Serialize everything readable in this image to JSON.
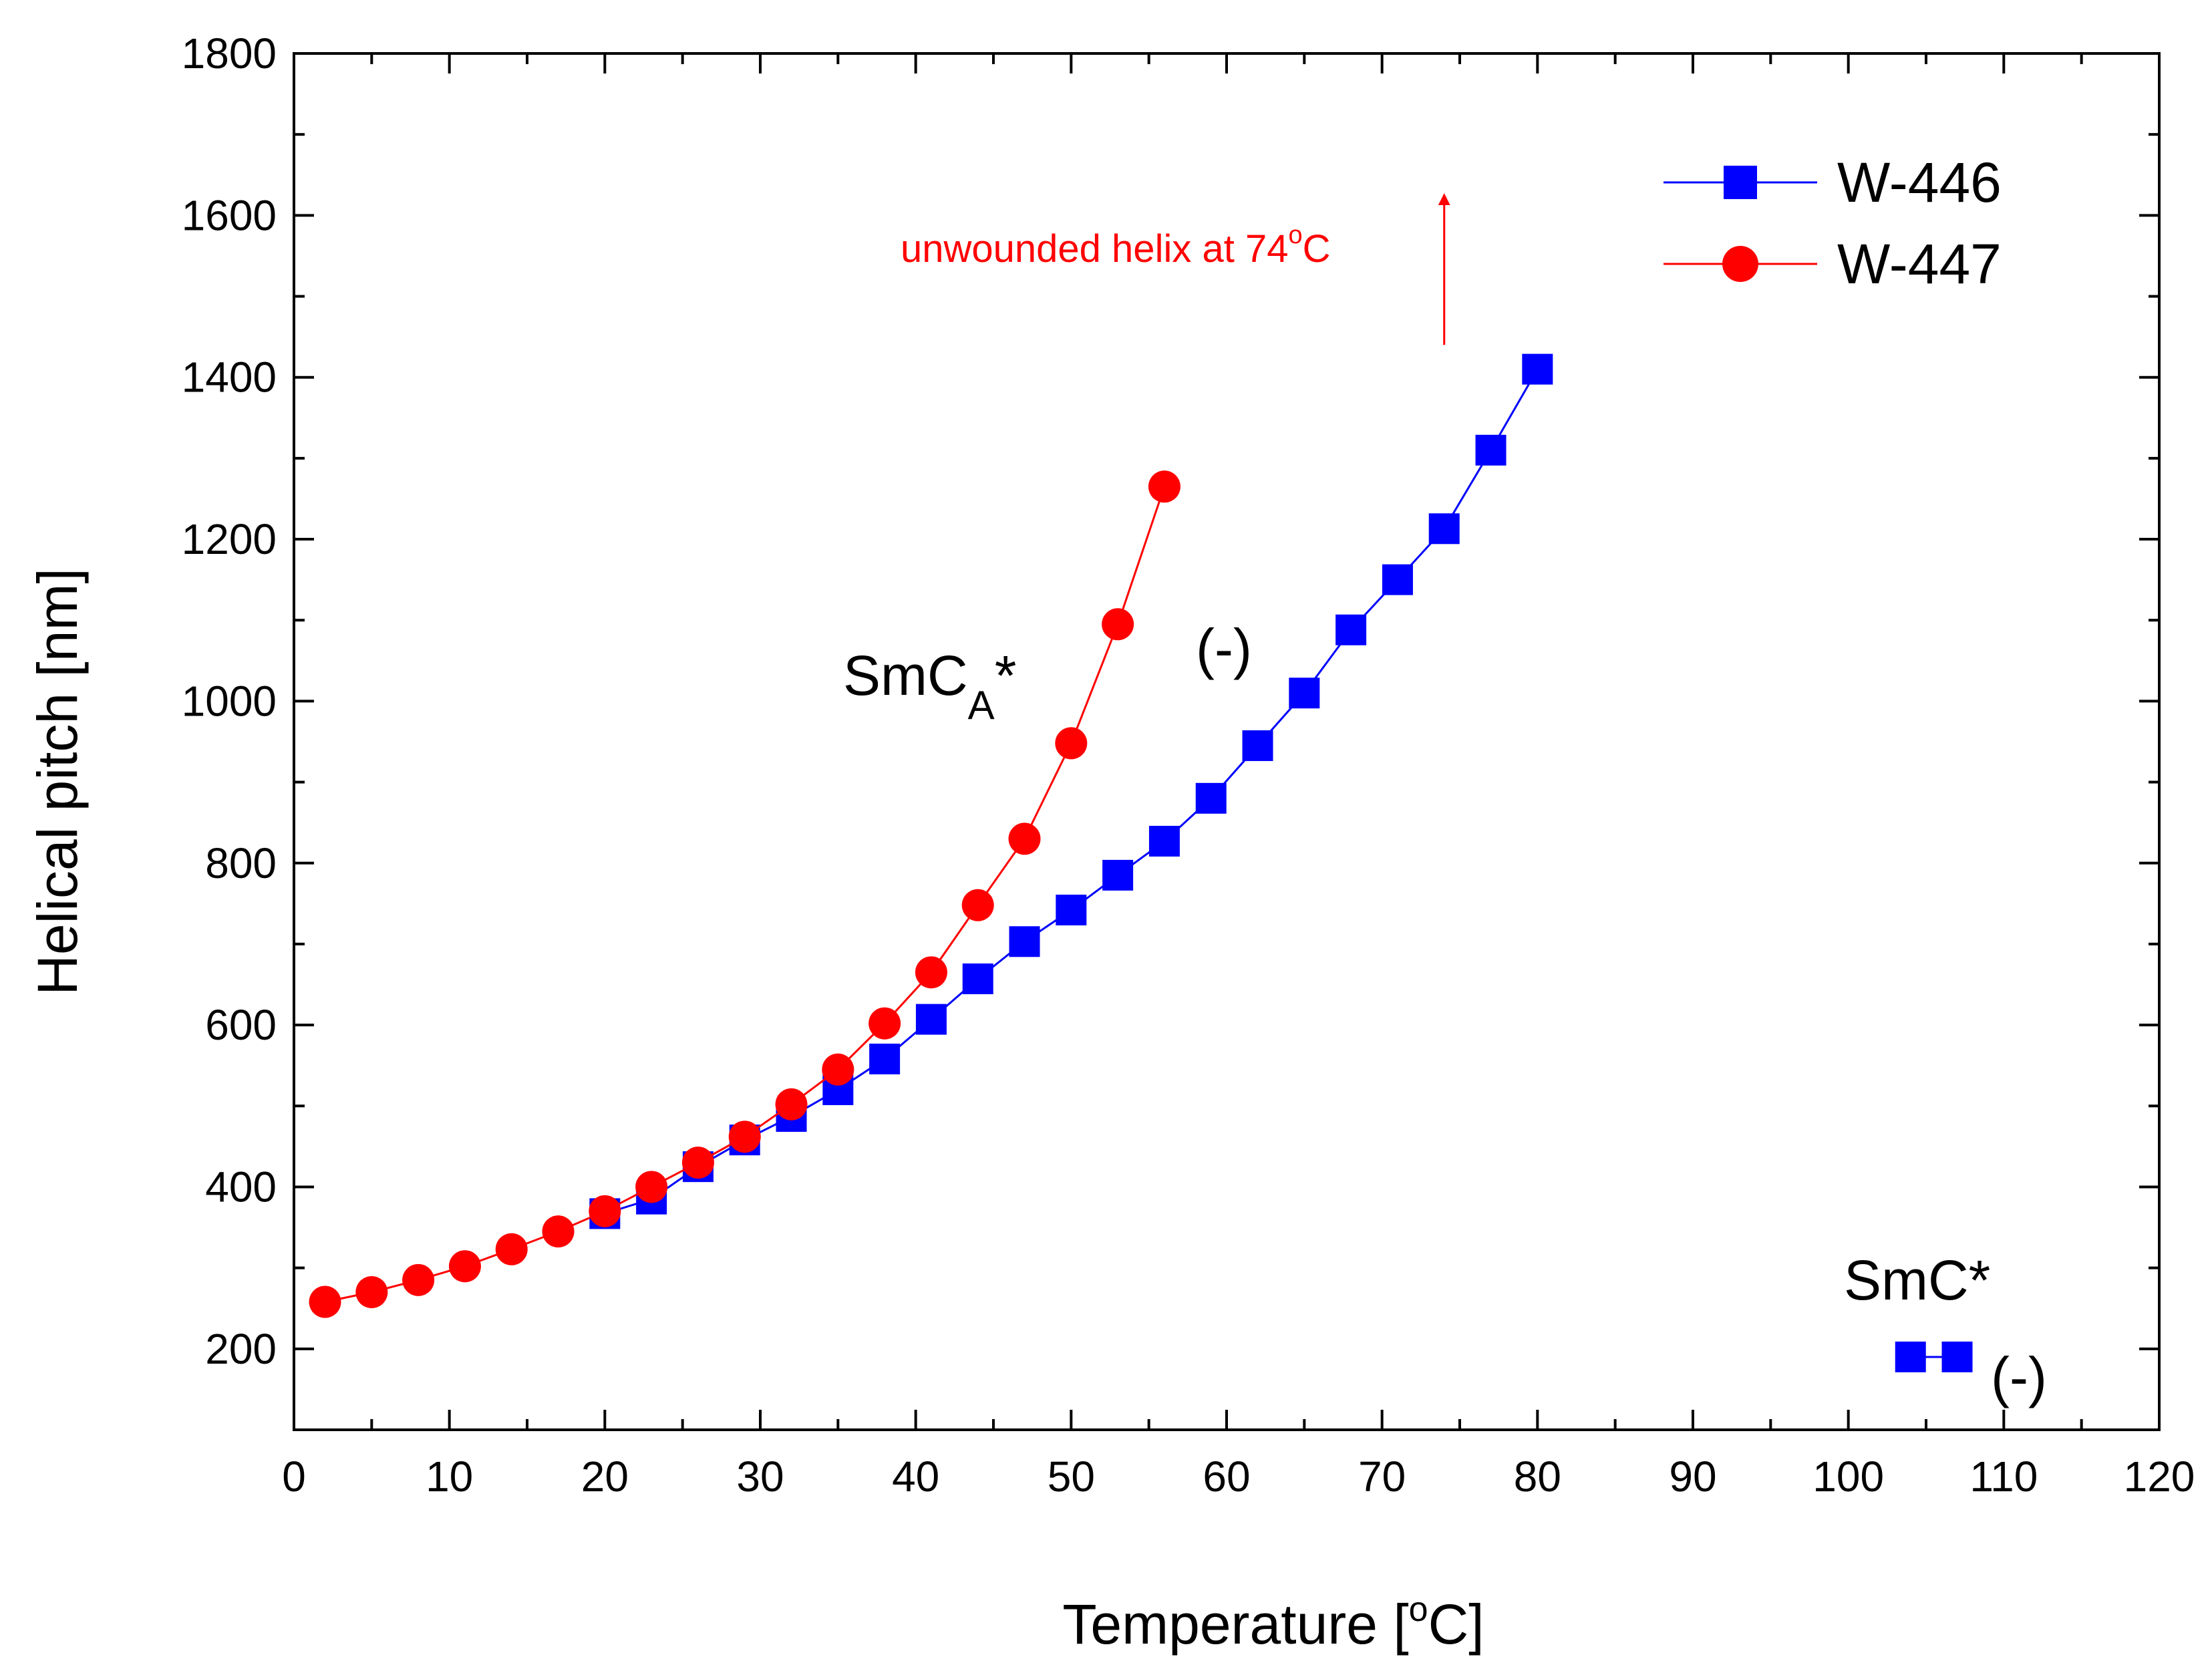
{
  "chart_data": {
    "type": "scatter",
    "xlabel": "Temperature [",
    "xlabel_sup": "o",
    "xlabel_end": "C]",
    "ylabel": "Helical pitch [nm]",
    "xlim": [
      0,
      120
    ],
    "ylim": [
      100,
      1800
    ],
    "x_ticks": [
      "0",
      "10",
      "20",
      "30",
      "40",
      "50",
      "60",
      "70",
      "80",
      "90",
      "100",
      "110",
      "120"
    ],
    "y_ticks": [
      "200",
      "400",
      "600",
      "800",
      "1000",
      "1200",
      "1400",
      "1600",
      "1800"
    ],
    "grid": false,
    "legend_position": "top-right",
    "series": [
      {
        "name": "W-446",
        "color": "#0000ff",
        "marker": "square",
        "x": [
          20,
          23,
          26,
          29,
          32,
          35,
          38,
          41,
          44,
          47,
          50,
          53,
          56,
          59,
          62,
          65,
          68,
          71,
          74,
          77,
          80
        ],
        "y": [
          367,
          385,
          425,
          458,
          487,
          520,
          558,
          607,
          657,
          703,
          742,
          785,
          827,
          880,
          945,
          1010,
          1088,
          1150,
          1213,
          1310,
          1410
        ]
      },
      {
        "name": "W-447",
        "color": "#ff0000",
        "marker": "circle",
        "x": [
          2,
          5,
          8,
          11,
          14,
          17,
          20,
          23,
          26,
          29,
          32,
          35,
          38,
          41,
          44,
          47,
          50,
          53,
          56
        ],
        "y": [
          258,
          270,
          285,
          302,
          323,
          345,
          370,
          400,
          430,
          462,
          502,
          545,
          602,
          665,
          748,
          830,
          948,
          1095,
          1265
        ]
      }
    ],
    "annotations": {
      "smca_main": "SmC",
      "smca_sub": "A",
      "smca_star": "*",
      "sign_middle": "(-)",
      "smc": "SmC*",
      "sign_bottom": "(-)",
      "unwound_text": "unwounded helix at 74",
      "unwound_sup": "o",
      "unwound_end": "C",
      "unwound_arrow_x": 74,
      "unwound_arrow_y_from": 1440,
      "unwound_arrow_y_to": 1620,
      "smc_marker_x": [
        104,
        107
      ],
      "smc_marker_y": 190
    }
  }
}
